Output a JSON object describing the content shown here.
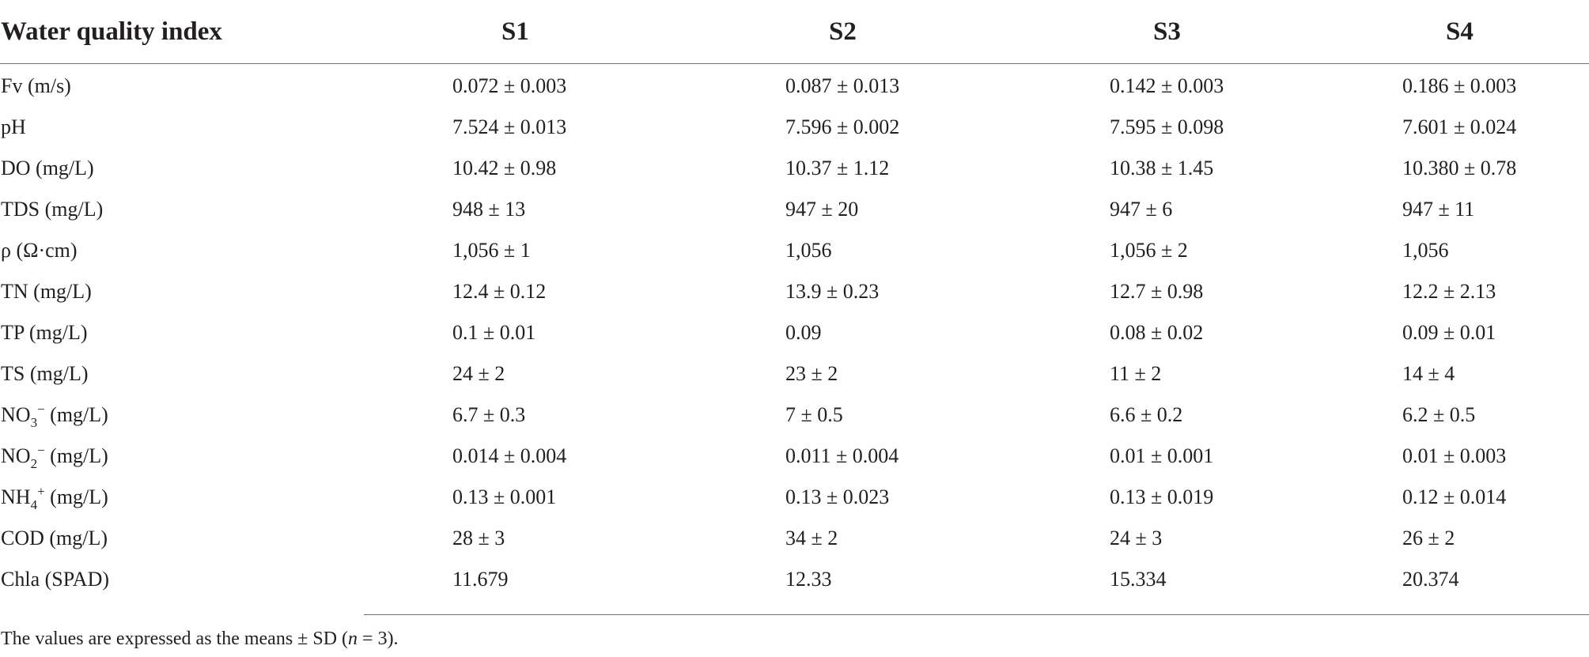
{
  "table": {
    "headers": [
      "Water quality index",
      "S1",
      "S2",
      "S3",
      "S4"
    ],
    "rows": [
      {
        "label": "Fv (m/s)",
        "values": [
          "0.072 ± 0.003",
          "0.087 ± 0.013",
          "0.142 ± 0.003",
          "0.186 ± 0.003"
        ]
      },
      {
        "label": "pH",
        "values": [
          "7.524 ± 0.013",
          "7.596 ± 0.002",
          "7.595 ± 0.098",
          "7.601 ± 0.024"
        ]
      },
      {
        "label": "DO (mg/L)",
        "values": [
          "10.42 ± 0.98",
          "10.37 ± 1.12",
          "10.38 ± 1.45",
          "10.380 ± 0.78"
        ]
      },
      {
        "label": "TDS (mg/L)",
        "values": [
          "948 ± 13",
          "947 ± 20",
          "947 ± 6",
          "947 ± 11"
        ]
      },
      {
        "label": "ρ (Ω·cm)",
        "values": [
          "1,056 ± 1",
          "1,056",
          "1,056 ± 2",
          "1,056"
        ]
      },
      {
        "label": "TN (mg/L)",
        "values": [
          "12.4 ± 0.12",
          "13.9 ± 0.23",
          "12.7 ± 0.98",
          "12.2 ± 2.13"
        ]
      },
      {
        "label": "TP (mg/L)",
        "values": [
          "0.1 ± 0.01",
          "0.09",
          "0.08 ± 0.02",
          "0.09 ± 0.01"
        ]
      },
      {
        "label": "TS (mg/L)",
        "values": [
          "24 ± 2",
          "23 ± 2",
          "11 ± 2",
          "14 ± 4"
        ]
      },
      {
        "label_base": "NO",
        "label_sub": "3",
        "label_sup": "−",
        "label_unit": " (mg/L)",
        "values": [
          "6.7 ± 0.3",
          "7 ± 0.5",
          "6.6 ± 0.2",
          "6.2 ± 0.5"
        ]
      },
      {
        "label_base": "NO",
        "label_sub": "2",
        "label_sup": "−",
        "label_unit": " (mg/L)",
        "values": [
          "0.014 ± 0.004",
          "0.011 ± 0.004",
          "0.01 ± 0.001",
          "0.01 ± 0.003"
        ]
      },
      {
        "label_base": "NH",
        "label_sub": "4",
        "label_sup": "+",
        "label_unit": " (mg/L)",
        "values": [
          "0.13 ± 0.001",
          "0.13 ± 0.023",
          "0.13 ± 0.019",
          "0.12 ± 0.014"
        ]
      },
      {
        "label": "COD (mg/L)",
        "values": [
          "28 ± 3",
          "34 ± 2",
          "24 ± 3",
          "26 ± 2"
        ]
      },
      {
        "label": "Chla (SPAD)",
        "values": [
          "11.679",
          "12.33",
          "15.334",
          "20.374"
        ]
      }
    ]
  },
  "footnote": {
    "before": "The values are expressed as the means ± SD (",
    "italic": "n",
    "after": " = 3)."
  }
}
